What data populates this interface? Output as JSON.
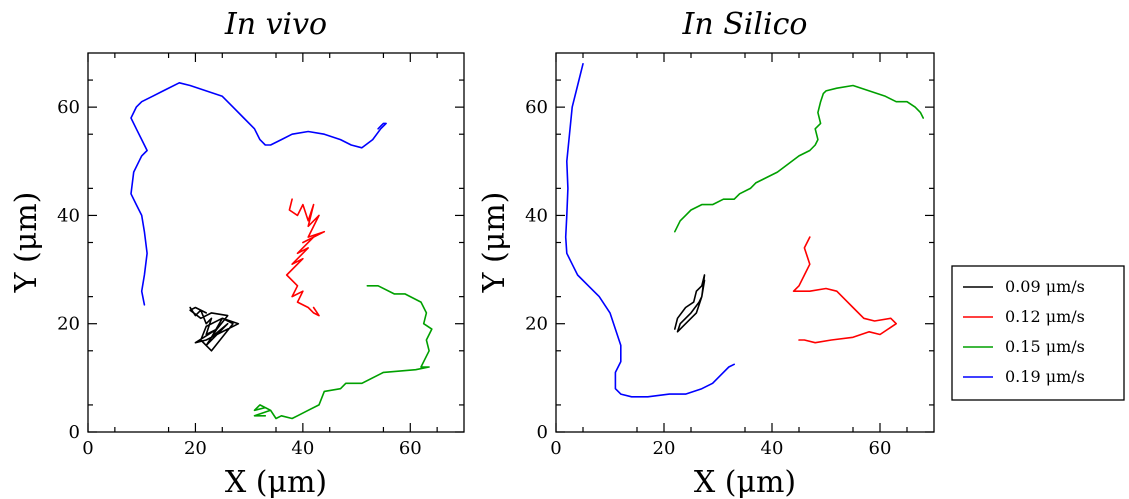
{
  "chart_data": [
    {
      "type": "line",
      "title": "In vivo",
      "xlabel": "X (μm)",
      "ylabel": "Y (μm)",
      "xlim": [
        0,
        70
      ],
      "ylim": [
        0,
        70
      ],
      "xticks": [
        0,
        20,
        40,
        60
      ],
      "yticks": [
        0,
        20,
        40,
        60
      ],
      "grid": false,
      "series": [
        {
          "color": "#000000",
          "x": [
            19,
            20,
            21,
            22,
            23,
            22,
            24,
            22,
            26,
            23,
            25,
            22,
            21,
            23,
            27,
            25,
            28,
            24,
            22,
            20,
            24,
            26,
            23,
            21,
            19,
            20,
            22
          ],
          "y": [
            23,
            21.5,
            22.5,
            20,
            21,
            18,
            19,
            16,
            20,
            17.5,
            21,
            19.5,
            17,
            15,
            20,
            21,
            20,
            18,
            17,
            16.5,
            19,
            21.5,
            22,
            21,
            22.5,
            23,
            22
          ]
        },
        {
          "color": "#ff0000",
          "x": [
            38,
            37.5,
            39,
            40,
            41,
            42,
            41,
            43,
            41,
            44,
            40,
            42,
            39,
            41,
            38,
            40,
            37,
            39,
            38,
            40,
            39,
            41,
            42,
            43,
            42
          ],
          "y": [
            43,
            41,
            40,
            42,
            39,
            42,
            38,
            40,
            36,
            37,
            35,
            36,
            33,
            34,
            31,
            32,
            29,
            27,
            25,
            26,
            24,
            23,
            22,
            21.5,
            23
          ]
        },
        {
          "color": "#00a000",
          "x": [
            52,
            54,
            57,
            59,
            62,
            63,
            62.5,
            64,
            63,
            63.5,
            62,
            63.5,
            61,
            55,
            51,
            48,
            47,
            44,
            43,
            41,
            39,
            38,
            36,
            35,
            34,
            33,
            31,
            32,
            34,
            31,
            33
          ],
          "y": [
            27,
            27,
            25.5,
            25.5,
            24,
            22,
            20,
            19,
            17,
            15,
            12,
            12,
            11.5,
            11,
            9,
            9,
            8,
            7.5,
            5,
            4,
            3,
            2.5,
            3,
            2.5,
            4,
            4.5,
            4,
            5,
            4,
            3,
            3
          ]
        },
        {
          "color": "#0000ff",
          "x": [
            10.5,
            10,
            10.5,
            11,
            10.5,
            10,
            9,
            8,
            8.5,
            9.5,
            10,
            11,
            10,
            9,
            8,
            9,
            10,
            12,
            14,
            17,
            19,
            22,
            25,
            27,
            29,
            31,
            32,
            33,
            34,
            36,
            38,
            41,
            44,
            47,
            49,
            51,
            53,
            54.5,
            55.5,
            55,
            54
          ],
          "y": [
            23.5,
            26,
            29,
            33,
            37,
            40,
            42,
            44,
            48,
            50,
            51,
            52,
            54,
            56,
            58,
            60,
            61,
            62,
            63,
            64.5,
            64,
            63,
            62,
            60,
            58,
            56,
            54,
            53,
            53,
            54,
            55,
            55.5,
            55,
            54,
            53,
            52.5,
            54,
            56,
            57,
            57,
            56
          ]
        }
      ]
    },
    {
      "type": "line",
      "title": "In Silico",
      "xlabel": "X (μm)",
      "ylabel": "Y (μm)",
      "xlim": [
        0,
        70
      ],
      "ylim": [
        0,
        70
      ],
      "xticks": [
        0,
        20,
        40,
        60
      ],
      "yticks": [
        0,
        20,
        40,
        60
      ],
      "grid": false,
      "series": [
        {
          "name": "0.09 μm/s",
          "color": "#000000",
          "x": [
            22,
            22.5,
            24,
            25.5,
            26,
            27,
            27.5,
            27,
            26.5,
            25,
            24,
            23,
            22.5,
            24,
            26,
            27,
            27.5
          ],
          "y": [
            19,
            21,
            23,
            24,
            26,
            27,
            29,
            25,
            24,
            22,
            21,
            20,
            18.5,
            20,
            22,
            25,
            28
          ]
        },
        {
          "name": "0.12 μm/s",
          "color": "#ff0000",
          "x": [
            47,
            46,
            47,
            46,
            45,
            44,
            47,
            50,
            52,
            54,
            55,
            57,
            59,
            62,
            63,
            60,
            58,
            55,
            51,
            48,
            46,
            45
          ],
          "y": [
            36,
            34,
            31,
            29,
            27,
            26,
            26,
            26.5,
            26,
            24,
            23,
            21,
            20.5,
            21,
            20,
            18,
            18.5,
            17.5,
            17,
            16.5,
            17,
            17
          ]
        },
        {
          "name": "0.15 μm/s",
          "color": "#00a000",
          "x": [
            22,
            23,
            24,
            25,
            27,
            29,
            31,
            33,
            34,
            36,
            37,
            39,
            41,
            43,
            45,
            47,
            48,
            48.5,
            48,
            49,
            48.5,
            49,
            49.5,
            50,
            52,
            55,
            58,
            61,
            63,
            65,
            66.5,
            67.5,
            68
          ],
          "y": [
            37,
            39,
            40,
            41,
            42,
            42,
            43,
            43,
            44,
            45,
            46,
            47,
            48,
            49.5,
            51,
            52,
            53,
            54,
            56,
            57,
            59,
            61,
            62.5,
            63,
            63.5,
            64,
            63,
            62,
            61,
            61,
            60,
            59,
            58
          ]
        },
        {
          "name": "0.19 μm/s",
          "color": "#0000ff",
          "x": [
            5,
            4,
            3,
            2.5,
            2,
            2.2,
            2,
            1.8,
            2,
            3,
            4,
            6,
            8,
            10,
            11,
            12,
            12,
            11,
            11,
            12,
            14,
            17,
            21,
            24,
            27,
            29,
            31,
            32,
            33
          ],
          "y": [
            68,
            64,
            60,
            55,
            50,
            45,
            40,
            36,
            33,
            31,
            29,
            27,
            25,
            22,
            19,
            16,
            13,
            11,
            8,
            7,
            6.5,
            6.5,
            7,
            7,
            8,
            9,
            11,
            12,
            12.5
          ]
        }
      ],
      "legend_placement": "outside-right"
    }
  ]
}
